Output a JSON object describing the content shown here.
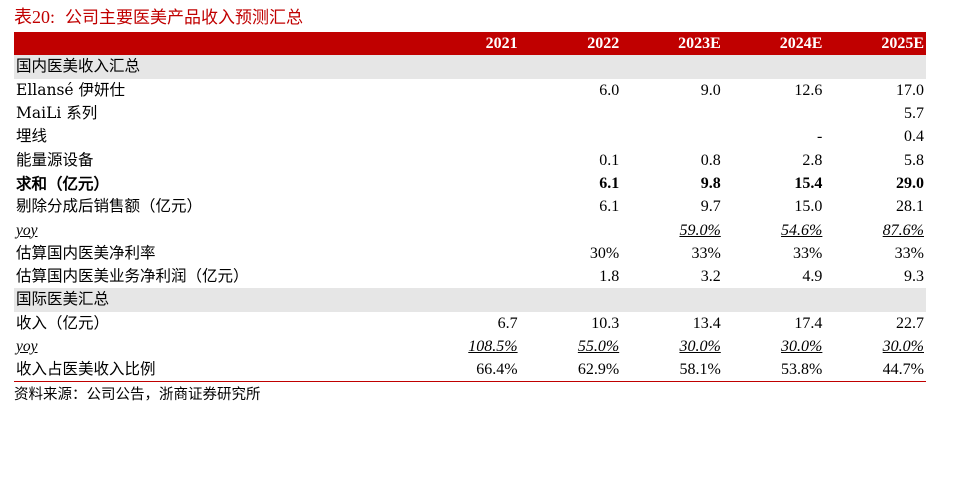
{
  "title": {
    "number": "表20:",
    "text": "公司主要医美产品收入预测汇总"
  },
  "columns": [
    "",
    "2021",
    "2022",
    "2023E",
    "2024E",
    "2025E"
  ],
  "rows": [
    {
      "type": "section",
      "label": "国内医美收入汇总",
      "values": [
        "",
        "",
        "",
        "",
        ""
      ]
    },
    {
      "type": "row",
      "label": "Ellansé 伊妍仕",
      "values": [
        "",
        "6.0",
        "9.0",
        "12.6",
        "17.0"
      ]
    },
    {
      "type": "row",
      "label": "MaiLi 系列",
      "values": [
        "",
        "",
        "",
        "",
        "5.7"
      ]
    },
    {
      "type": "row",
      "label": "埋线",
      "values": [
        "",
        "",
        "",
        "-",
        "0.4"
      ]
    },
    {
      "type": "row",
      "label": "能量源设备",
      "values": [
        "",
        "0.1",
        "0.8",
        "2.8",
        "5.8"
      ]
    },
    {
      "type": "bold",
      "label": "求和（亿元）",
      "values": [
        "",
        "6.1",
        "9.8",
        "15.4",
        "29.0"
      ]
    },
    {
      "type": "row",
      "label": "剔除分成后销售额（亿元）",
      "values": [
        "",
        "6.1",
        "9.7",
        "15.0",
        "28.1"
      ]
    },
    {
      "type": "yoy",
      "label": "yoy",
      "values": [
        "",
        "",
        "59.0%",
        "54.6%",
        "87.6%"
      ]
    },
    {
      "type": "row",
      "label": "估算国内医美净利率",
      "values": [
        "",
        "30%",
        "33%",
        "33%",
        "33%"
      ]
    },
    {
      "type": "row",
      "label": "估算国内医美业务净利润（亿元）",
      "values": [
        "",
        "1.8",
        "3.2",
        "4.9",
        "9.3"
      ]
    },
    {
      "type": "section",
      "label": "国际医美汇总",
      "values": [
        "",
        "",
        "",
        "",
        ""
      ]
    },
    {
      "type": "row",
      "label": "收入（亿元）",
      "values": [
        "6.7",
        "10.3",
        "13.4",
        "17.4",
        "22.7"
      ]
    },
    {
      "type": "yoy",
      "label": "yoy",
      "values": [
        "108.5%",
        "55.0%",
        "30.0%",
        "30.0%",
        "30.0%"
      ]
    },
    {
      "type": "last",
      "label": "收入占医美收入比例",
      "values": [
        "66.4%",
        "62.9%",
        "58.1%",
        "53.8%",
        "44.7%"
      ]
    }
  ],
  "source": "资料来源：公司公告，浙商证券研究所",
  "colors": {
    "accent": "#c00000",
    "section_bg": "#e6e6e6"
  }
}
